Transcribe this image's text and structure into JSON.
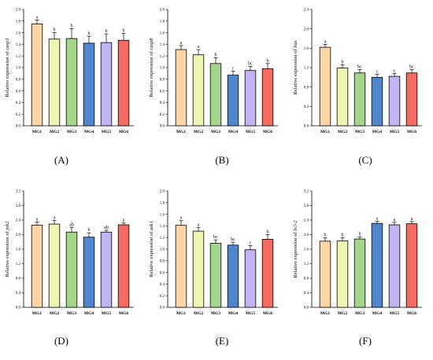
{
  "chart_data": [
    {
      "type": "bar",
      "panel_label": "(A)",
      "ylabel_prefix": "Relative expression of ",
      "gene": "casp3",
      "categories": [
        "MG1",
        "MG2",
        "MG3",
        "MG4",
        "MG5",
        "MG6"
      ],
      "values": [
        1.75,
        1.49,
        1.5,
        1.42,
        1.43,
        1.47
      ],
      "errors": [
        0.07,
        0.11,
        0.17,
        0.12,
        0.15,
        0.12
      ],
      "letters": [
        "a",
        "b",
        "b",
        "b",
        "b",
        "b"
      ],
      "colors": [
        "#FDD5A6",
        "#EEF5B3",
        "#A5D58A",
        "#4F86CC",
        "#C2B4F2",
        "#F56B60"
      ],
      "ylim": [
        0,
        2.0
      ],
      "yticks": [
        "0.0",
        "0.2",
        "0.4",
        "0.6",
        "0.8",
        "1.0",
        "1.2",
        "1.4",
        "1.6",
        "1.8",
        "2.0"
      ]
    },
    {
      "type": "bar",
      "panel_label": "(B)",
      "ylabel_prefix": "Relative expression of ",
      "gene": "casp8",
      "categories": [
        "MG1",
        "MG2",
        "MG3",
        "MG4",
        "MG5",
        "MG6"
      ],
      "values": [
        1.31,
        1.22,
        1.07,
        0.87,
        0.95,
        0.98
      ],
      "errors": [
        0.07,
        0.09,
        0.1,
        0.07,
        0.07,
        0.09
      ],
      "letters": [
        "a",
        "a",
        "b",
        "c",
        "bc",
        "b"
      ],
      "colors": [
        "#FDD5A6",
        "#EEF5B3",
        "#A5D58A",
        "#4F86CC",
        "#C2B4F2",
        "#F56B60"
      ],
      "ylim": [
        0,
        2.0
      ],
      "yticks": [
        "0.0",
        "0.2",
        "0.4",
        "0.6",
        "0.8",
        "1.0",
        "1.2",
        "1.4",
        "1.6",
        "1.8",
        "2.0"
      ]
    },
    {
      "type": "bar",
      "panel_label": "(C)",
      "ylabel_prefix": "Relative expression of ",
      "gene": "bax",
      "categories": [
        "MG1",
        "MG2",
        "MG3",
        "MG4",
        "MG5",
        "MG6"
      ],
      "values": [
        1.62,
        1.19,
        1.09,
        1.0,
        1.02,
        1.09
      ],
      "errors": [
        0.06,
        0.07,
        0.07,
        0.06,
        0.06,
        0.07
      ],
      "letters": [
        "a",
        "b",
        "bc",
        "c",
        "c",
        "bc"
      ],
      "colors": [
        "#FDD5A6",
        "#EEF5B3",
        "#A5D58A",
        "#4F86CC",
        "#C2B4F2",
        "#F56B60"
      ],
      "ylim": [
        0,
        2.4
      ],
      "yticks": [
        "0.0",
        "0.4",
        "0.8",
        "1.2",
        "1.6",
        "2.0",
        "2.4"
      ]
    },
    {
      "type": "bar",
      "panel_label": "(D)",
      "ylabel_prefix": "Relative expression of ",
      "gene": "jnk2",
      "categories": [
        "MG1",
        "MG2",
        "MG3",
        "MG4",
        "MG5",
        "MG6"
      ],
      "values": [
        2.26,
        2.29,
        2.07,
        1.93,
        2.07,
        2.27
      ],
      "errors": [
        0.09,
        0.1,
        0.13,
        0.12,
        0.05,
        0.05
      ],
      "letters": [
        "a",
        "a",
        "ab",
        "b",
        "ab",
        "a"
      ],
      "colors": [
        "#FDD5A6",
        "#EEF5B3",
        "#A5D58A",
        "#4F86CC",
        "#C2B4F2",
        "#F56B60"
      ],
      "ylim": [
        0,
        3.2
      ],
      "yticks": [
        "0.0",
        "0.4",
        "0.8",
        "1.2",
        "1.6",
        "2.0",
        "2.4",
        "2.8",
        "3.2"
      ]
    },
    {
      "type": "bar",
      "panel_label": "(E)",
      "ylabel_prefix": "Relative expression of ",
      "gene": "ask1",
      "categories": [
        "MG1",
        "MG2",
        "MG3",
        "MG4",
        "MG5",
        "MG6"
      ],
      "values": [
        1.41,
        1.31,
        1.1,
        1.07,
        0.99,
        1.17
      ],
      "errors": [
        0.08,
        0.06,
        0.06,
        0.05,
        0.07,
        0.08
      ],
      "letters": [
        "a",
        "a",
        "bc",
        "bc",
        "c",
        "b"
      ],
      "colors": [
        "#FDD5A6",
        "#EEF5B3",
        "#A5D58A",
        "#4F86CC",
        "#C2B4F2",
        "#F56B60"
      ],
      "ylim": [
        0,
        2.0
      ],
      "yticks": [
        "0.0",
        "0.2",
        "0.4",
        "0.6",
        "0.8",
        "1.0",
        "1.2",
        "1.4",
        "1.6",
        "1.8",
        "2.0"
      ]
    },
    {
      "type": "bar",
      "panel_label": "(F)",
      "ylabel_prefix": "Relative expression of ",
      "gene": "bcl-2",
      "categories": [
        "MG1",
        "MG2",
        "MG3",
        "MG4",
        "MG5",
        "MG6"
      ],
      "values": [
        1.82,
        1.83,
        1.88,
        2.31,
        2.27,
        2.3
      ],
      "errors": [
        0.09,
        0.08,
        0.06,
        0.06,
        0.07,
        0.06
      ],
      "letters": [
        "b",
        "b",
        "b",
        "a",
        "a",
        "a"
      ],
      "colors": [
        "#FDD5A6",
        "#EEF5B3",
        "#A5D58A",
        "#4F86CC",
        "#C2B4F2",
        "#F56B60"
      ],
      "ylim": [
        0,
        3.2
      ],
      "yticks": [
        "0.0",
        "0.4",
        "0.8",
        "1.2",
        "1.6",
        "2.0",
        "2.4",
        "2.8",
        "3.2"
      ]
    }
  ]
}
